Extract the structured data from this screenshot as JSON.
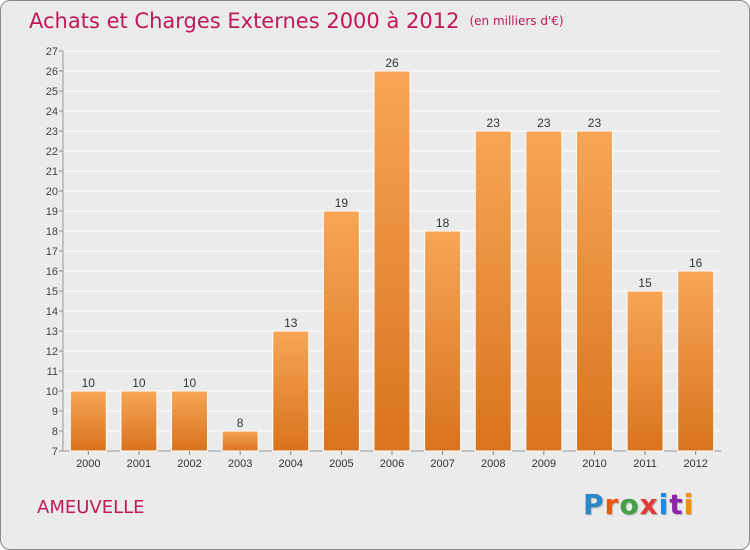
{
  "title": "Achats et Charges Externes 2000 à 2012",
  "unit": "(en milliers d'€)",
  "place": "AMEUVELLE",
  "logo": {
    "text": "Proxiti",
    "letter_colors": [
      "#2a87c8",
      "#e8590c",
      "#43a047",
      "#e53935",
      "#1e88e5",
      "#8e24aa",
      "#fb8c00"
    ]
  },
  "colors": {
    "bar_top": "#f6a656",
    "bar_bottom": "#d9731d",
    "title": "#c2185b",
    "background": "#ebebeb",
    "grid": "#ffffff"
  },
  "chart_data": {
    "type": "bar",
    "title": "Achats et Charges Externes 2000 à 2012",
    "categories": [
      "2000",
      "2001",
      "2002",
      "2003",
      "2004",
      "2005",
      "2006",
      "2007",
      "2008",
      "2009",
      "2010",
      "2011",
      "2012"
    ],
    "values": [
      10,
      10,
      10,
      8,
      13,
      19,
      26,
      18,
      23,
      23,
      23,
      15,
      16
    ],
    "ylim": [
      7,
      27
    ],
    "yticks": [
      7,
      8,
      9,
      10,
      11,
      12,
      13,
      14,
      15,
      16,
      17,
      18,
      19,
      20,
      21,
      22,
      23,
      24,
      25,
      26,
      27
    ],
    "grid": true,
    "xlabel": "",
    "ylabel": ""
  }
}
